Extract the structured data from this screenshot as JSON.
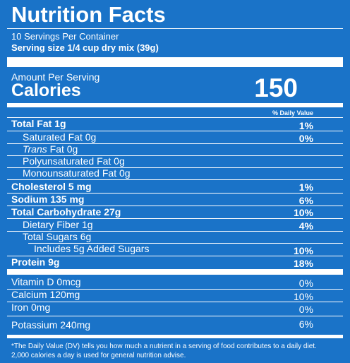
{
  "title": "Nutrition Facts",
  "servings_per_container": "10 Servings Per Container",
  "serving_size": "Serving size 1/4 cup dry mix (39g)",
  "amount_per_serving": "Amount Per Serving",
  "calories_label": "Calories",
  "calories_value": "150",
  "daily_value_header": "% Daily Value",
  "nutrients": [
    {
      "label": "Total Fat 1g",
      "dv": "1%"
    },
    {
      "label": "Saturated Fat 0g",
      "dv": "0%"
    },
    {
      "label_italic": "Trans",
      "label_rest": " Fat 0g"
    },
    {
      "label": "Polyunsaturated Fat 0g"
    },
    {
      "label": "Monounsaturated Fat 0g"
    },
    {
      "label": "Cholesterol 5 mg",
      "dv": "1%"
    },
    {
      "label": "Sodium 135 mg",
      "dv": "6%"
    },
    {
      "label": "Total Carbohydrate 27g",
      "dv": "10%"
    },
    {
      "label": "Dietary Fiber 1g",
      "dv": "4%"
    },
    {
      "label": "Total Sugars 6g"
    },
    {
      "label": "Includes 5g Added Sugars",
      "dv": "10%"
    },
    {
      "label": "Protein 9g",
      "dv": "18%"
    }
  ],
  "vitamins": [
    {
      "label": "Vitamin D 0mcg",
      "dv": "0%"
    },
    {
      "label": "Calcium 120mg",
      "dv": "10%"
    },
    {
      "label": "Iron 0mg",
      "dv": "0%"
    },
    {
      "label": "Potassium 240mg",
      "dv": "6%"
    }
  ],
  "footnote": "*The Daily Value (DV) tells you how much a nutrient in a serving of food contributes to a daily diet. 2,000 calories a day is used for general nutrition advise.",
  "colors": {
    "background": "#1a73c8",
    "text": "#ffffff"
  }
}
